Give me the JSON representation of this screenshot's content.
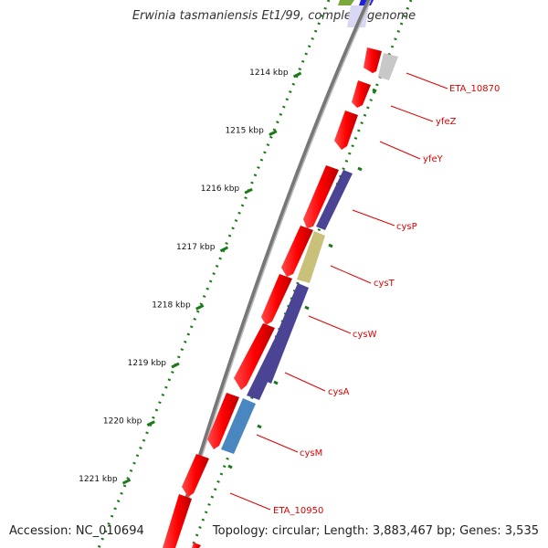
{
  "title": "Erwinia tasmaniensis Et1/99, complete genome",
  "footer": {
    "accession": "Accession: NC_010694",
    "summary": "Topology: circular; Length: 3,883,467 bp; Genes: 3,535"
  },
  "colors": {
    "backbone": "#888888",
    "gene": "#ff0000",
    "sulfate_transport": "#4b4394",
    "cysT": "#c9c07a",
    "cysM": "#4a86c0",
    "unknown": "#c8c8c8",
    "tick": "#1a7a1a",
    "label": "#e00000",
    "top_green": "#7aa83e",
    "top_blue": "#1e1ee0"
  },
  "scale_ticks": [
    {
      "label": "1214 kbp",
      "kbp": 1214
    },
    {
      "label": "1215 kbp",
      "kbp": 1215
    },
    {
      "label": "1216 kbp",
      "kbp": 1216
    },
    {
      "label": "1217 kbp",
      "kbp": 1217
    },
    {
      "label": "1218 kbp",
      "kbp": 1218
    },
    {
      "label": "1219 kbp",
      "kbp": 1219
    },
    {
      "label": "1220 kbp",
      "kbp": 1220
    },
    {
      "label": "1221 kbp",
      "kbp": 1221
    }
  ],
  "gene_labels": [
    {
      "name": "ETA_10870"
    },
    {
      "name": "yfeZ"
    },
    {
      "name": "yfeY"
    },
    {
      "name": "cysP"
    },
    {
      "name": "cysT"
    },
    {
      "name": "cysW"
    },
    {
      "name": "cysA"
    },
    {
      "name": "cysM"
    },
    {
      "name": "ETA_10950"
    }
  ]
}
